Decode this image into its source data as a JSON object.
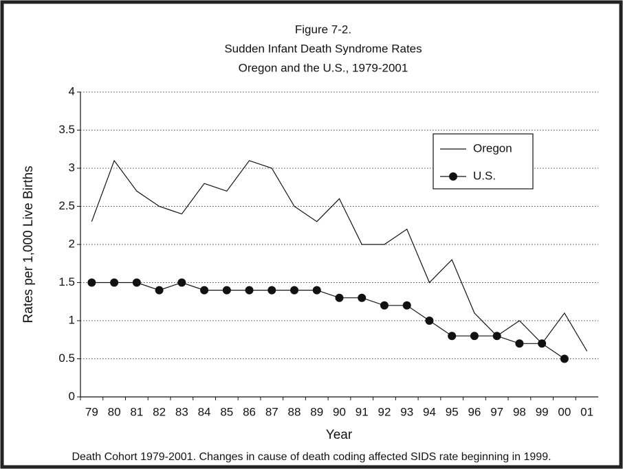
{
  "chart_data": {
    "type": "line",
    "figure_label": "Figure 7-2.",
    "title": "Sudden Infant Death Syndrome Rates",
    "subtitle": "Oregon and the U.S., 1979-2001",
    "x_label": "Year",
    "y_label": "Rates per 1,000 Live Births",
    "note": "Death Cohort 1979-2001.  Changes in cause of death coding affected SIDS rate beginning in 1999.",
    "categories": [
      "79",
      "80",
      "81",
      "82",
      "83",
      "84",
      "85",
      "86",
      "87",
      "88",
      "89",
      "90",
      "91",
      "92",
      "93",
      "94",
      "95",
      "96",
      "97",
      "98",
      "99",
      "00",
      "01"
    ],
    "series": [
      {
        "name": "Oregon",
        "color": "#111111",
        "marker": false,
        "values": [
          2.3,
          3.1,
          2.7,
          2.5,
          2.4,
          2.8,
          2.7,
          3.1,
          3.0,
          2.5,
          2.3,
          2.6,
          2.0,
          2.0,
          2.2,
          1.5,
          1.8,
          1.1,
          0.8,
          1.0,
          0.7,
          1.1,
          0.6
        ]
      },
      {
        "name": "U.S.",
        "color": "#111111",
        "marker": true,
        "values": [
          1.5,
          1.5,
          1.5,
          1.4,
          1.5,
          1.4,
          1.4,
          1.4,
          1.4,
          1.4,
          1.4,
          1.3,
          1.3,
          1.2,
          1.2,
          1.0,
          0.8,
          0.8,
          0.8,
          0.7,
          0.7,
          0.5,
          null
        ]
      }
    ],
    "ylim": [
      0,
      4
    ],
    "yticks": [
      0,
      0.5,
      1,
      1.5,
      2,
      2.5,
      3,
      3.5,
      4
    ],
    "grid": true,
    "legend": "upper right"
  }
}
